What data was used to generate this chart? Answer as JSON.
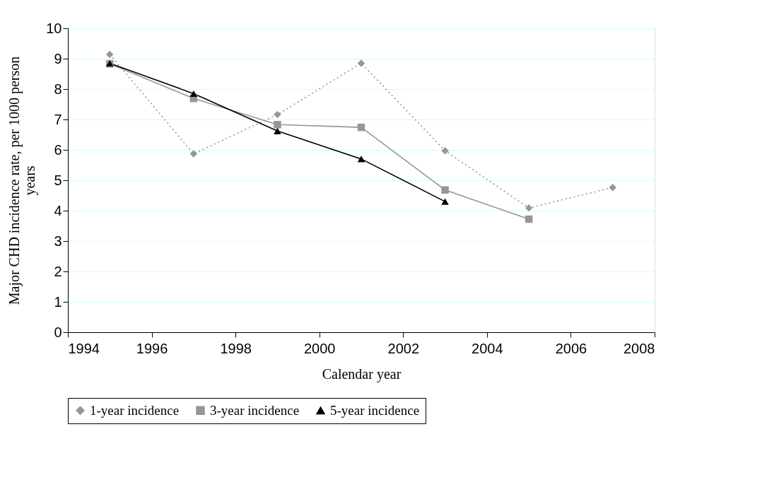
{
  "chart_data": {
    "type": "line",
    "xlabel": "Calendar year",
    "ylabel": "Major CHD incidence rate, per 1000 person years",
    "x": [
      1995,
      1997,
      1999,
      2001,
      2003,
      2005,
      2007
    ],
    "series": [
      {
        "name": "1-year incidence",
        "color": "#969696",
        "marker": "diamond",
        "line_style": "dotted",
        "values": [
          9.14,
          5.87,
          7.16,
          8.85,
          5.97,
          4.09,
          4.76
        ]
      },
      {
        "name": "3-year incidence",
        "color": "#969696",
        "marker": "square",
        "line_style": "solid",
        "values": [
          8.83,
          7.69,
          6.83,
          6.74,
          4.68,
          3.72,
          null
        ]
      },
      {
        "name": "5-year incidence",
        "color": "#000000",
        "marker": "triangle",
        "line_style": "solid",
        "values": [
          8.85,
          7.85,
          6.62,
          5.7,
          4.3,
          null,
          null
        ]
      }
    ],
    "xlim": [
      1994,
      2008
    ],
    "xticks": [
      1994,
      1996,
      1998,
      2000,
      2002,
      2004,
      2006,
      2008
    ],
    "ylim": [
      0,
      10
    ],
    "yticks": [
      0,
      1,
      2,
      3,
      4,
      5,
      6,
      7,
      8,
      9,
      10
    ],
    "grid": "y",
    "legend": "bottom"
  }
}
